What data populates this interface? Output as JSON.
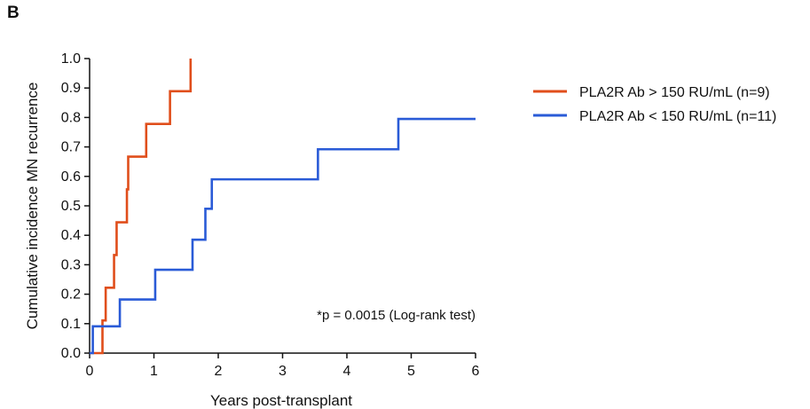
{
  "panel_label": "B",
  "chart_data": {
    "type": "line",
    "step": true,
    "xlabel": "Years post-transplant",
    "ylabel": "Cumulative incidence MN recurrence",
    "xlim": [
      0,
      6
    ],
    "ylim": [
      0,
      1
    ],
    "x_ticks": [
      "0",
      "1",
      "2",
      "3",
      "4",
      "5",
      "6"
    ],
    "y_ticks": [
      "0.0",
      "0.1",
      "0.2",
      "0.3",
      "0.4",
      "0.5",
      "0.6",
      "0.7",
      "0.8",
      "0.9",
      "1.0"
    ],
    "grid": false,
    "legend_position": "top-right",
    "annotation": "*p = 0.0015 (Log-rank test)",
    "series": [
      {
        "name": "PLA2R Ab > 150 RU/mL (n=9)",
        "color": "#e04e1b",
        "points": [
          [
            0.2,
            0
          ],
          [
            0.2,
            0.111
          ],
          [
            0.25,
            0.222
          ],
          [
            0.38,
            0.333
          ],
          [
            0.42,
            0.444
          ],
          [
            0.58,
            0.556
          ],
          [
            0.6,
            0.667
          ],
          [
            0.88,
            0.778
          ],
          [
            1.25,
            0.889
          ],
          [
            1.57,
            1.0
          ]
        ]
      },
      {
        "name": "PLA2R Ab < 150 RU/mL (n=11)",
        "color": "#2a5bd7",
        "points": [
          [
            0.05,
            0
          ],
          [
            0.05,
            0.091
          ],
          [
            0.47,
            0.182
          ],
          [
            1.02,
            0.283
          ],
          [
            1.6,
            0.385
          ],
          [
            1.8,
            0.49
          ],
          [
            1.9,
            0.59
          ],
          [
            3.55,
            0.692
          ],
          [
            4.8,
            0.795
          ],
          [
            6.0,
            0.795
          ]
        ]
      }
    ]
  }
}
